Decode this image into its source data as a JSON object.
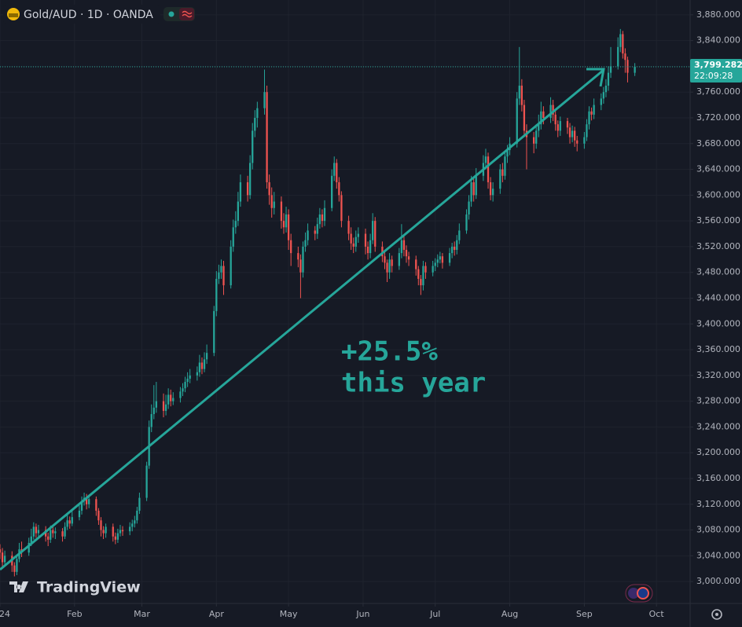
{
  "header": {
    "title": "Gold/AUD · 1D · OANDA"
  },
  "branding": "TradingView",
  "chart_data": {
    "type": "candlestick",
    "x": [
      0,
      1,
      2,
      5,
      6,
      7,
      8,
      9,
      12,
      13,
      14,
      15,
      16,
      19,
      20,
      21,
      22,
      23,
      26,
      27,
      28,
      29,
      30,
      33,
      34,
      35,
      36,
      37,
      40,
      41,
      42,
      43,
      44,
      47,
      48,
      49,
      50,
      51,
      54,
      55,
      56,
      57,
      58,
      61,
      62,
      63,
      64,
      65,
      68,
      69,
      70,
      71,
      72,
      75,
      76,
      77,
      78,
      79,
      82,
      83,
      84,
      85,
      86,
      89,
      90,
      91,
      92,
      93,
      96,
      97,
      98,
      99,
      100,
      103,
      104,
      105,
      106,
      107,
      110,
      111,
      112,
      113,
      114,
      117,
      118,
      119,
      120,
      121,
      124,
      125,
      126,
      127,
      128,
      131,
      132,
      133,
      134,
      135,
      138,
      139,
      140,
      141,
      142,
      145,
      146,
      147,
      148,
      149,
      152,
      153,
      154,
      155,
      156,
      159,
      160,
      161,
      162,
      163,
      166,
      167,
      168,
      169,
      170,
      173,
      174,
      175,
      176,
      177,
      180,
      181,
      182,
      183,
      184,
      187,
      188,
      189,
      190,
      191,
      194,
      195,
      196,
      197,
      198,
      201,
      202,
      203,
      204,
      205,
      208,
      209,
      210,
      211,
      212,
      215,
      216,
      217,
      218,
      219,
      222,
      223,
      224,
      225,
      226,
      229,
      230,
      231,
      232,
      233,
      236,
      237,
      238,
      239,
      240,
      243,
      244,
      245,
      246,
      247,
      250,
      251,
      252,
      253,
      254,
      257,
      258,
      259,
      260,
      261,
      264
    ],
    "open": [
      3050,
      3045,
      3030,
      3040,
      3025,
      3015,
      3035,
      3050,
      3045,
      3060,
      3070,
      3085,
      3075,
      3080,
      3070,
      3065,
      3080,
      3075,
      3078,
      3070,
      3085,
      3095,
      3090,
      3100,
      3110,
      3125,
      3130,
      3120,
      3128,
      3110,
      3095,
      3080,
      3075,
      3085,
      3070,
      3065,
      3075,
      3080,
      3078,
      3085,
      3090,
      3095,
      3110,
      3130,
      3180,
      3240,
      3260,
      3270,
      3280,
      3265,
      3275,
      3290,
      3280,
      3285,
      3295,
      3300,
      3310,
      3315,
      3320,
      3325,
      3340,
      3330,
      3345,
      3355,
      3420,
      3470,
      3480,
      3490,
      3460,
      3520,
      3550,
      3560,
      3590,
      3620,
      3600,
      3650,
      3700,
      3720,
      3735,
      3760,
      3620,
      3600,
      3580,
      3590,
      3560,
      3550,
      3570,
      3530,
      3510,
      3500,
      3480,
      3520,
      3530,
      3545,
      3540,
      3555,
      3570,
      3560,
      3580,
      3630,
      3650,
      3620,
      3600,
      3560,
      3540,
      3525,
      3520,
      3535,
      3540,
      3520,
      3510,
      3530,
      3560,
      3520,
      3505,
      3495,
      3480,
      3500,
      3490,
      3510,
      3530,
      3515,
      3505,
      3500,
      3485,
      3470,
      3460,
      3490,
      3480,
      3490,
      3495,
      3500,
      3505,
      3495,
      3510,
      3520,
      3515,
      3530,
      3545,
      3570,
      3590,
      3620,
      3600,
      3630,
      3650,
      3660,
      3620,
      3600,
      3610,
      3640,
      3630,
      3660,
      3670,
      3680,
      3750,
      3770,
      3740,
      3700,
      3690,
      3680,
      3700,
      3710,
      3730,
      3720,
      3740,
      3725,
      3710,
      3700,
      3715,
      3705,
      3690,
      3700,
      3685,
      3680,
      3690,
      3710,
      3730,
      3725,
      3740,
      3750,
      3760,
      3770,
      3790,
      3800,
      3830,
      3850,
      3820,
      3810,
      3790
    ],
    "high": [
      3058,
      3052,
      3048,
      3047,
      3030,
      3042,
      3060,
      3062,
      3068,
      3082,
      3092,
      3090,
      3088,
      3086,
      3076,
      3087,
      3085,
      3084,
      3083,
      3092,
      3104,
      3101,
      3110,
      3118,
      3132,
      3138,
      3136,
      3135,
      3132,
      3114,
      3100,
      3086,
      3090,
      3090,
      3076,
      3082,
      3088,
      3086,
      3092,
      3096,
      3102,
      3116,
      3138,
      3186,
      3250,
      3275,
      3305,
      3310,
      3292,
      3290,
      3300,
      3298,
      3294,
      3302,
      3308,
      3318,
      3325,
      3330,
      3334,
      3352,
      3348,
      3356,
      3368,
      3428,
      3482,
      3492,
      3500,
      3498,
      3530,
      3562,
      3575,
      3605,
      3632,
      3630,
      3662,
      3712,
      3732,
      3745,
      3795,
      3770,
      3632,
      3612,
      3605,
      3598,
      3572,
      3582,
      3578,
      3540,
      3520,
      3508,
      3528,
      3542,
      3556,
      3552,
      3565,
      3580,
      3578,
      3592,
      3640,
      3660,
      3656,
      3628,
      3606,
      3568,
      3550,
      3534,
      3545,
      3550,
      3548,
      3528,
      3540,
      3572,
      3566,
      3528,
      3512,
      3500,
      3510,
      3506,
      3518,
      3555,
      3538,
      3522,
      3512,
      3506,
      3490,
      3476,
      3498,
      3496,
      3498,
      3502,
      3508,
      3512,
      3510,
      3518,
      3526,
      3528,
      3538,
      3556,
      3578,
      3600,
      3630,
      3628,
      3642,
      3662,
      3672,
      3666,
      3628,
      3620,
      3648,
      3650,
      3668,
      3678,
      3690,
      3760,
      3830,
      3780,
      3748,
      3710,
      3698,
      3710,
      3725,
      3745,
      3738,
      3752,
      3748,
      3732,
      3716,
      3722,
      3720,
      3712,
      3708,
      3706,
      3692,
      3698,
      3718,
      3738,
      3736,
      3750,
      3758,
      3768,
      3780,
      3800,
      3830,
      3845,
      3858,
      3855,
      3828,
      3815,
      3805
    ],
    "low": [
      3035,
      3020,
      3025,
      3015,
      3008,
      3010,
      3030,
      3038,
      3040,
      3055,
      3065,
      3068,
      3070,
      3062,
      3055,
      3060,
      3068,
      3066,
      3062,
      3066,
      3080,
      3082,
      3086,
      3095,
      3104,
      3118,
      3112,
      3114,
      3102,
      3088,
      3070,
      3066,
      3068,
      3062,
      3058,
      3060,
      3070,
      3071,
      3072,
      3078,
      3084,
      3090,
      3105,
      3125,
      3175,
      3232,
      3252,
      3262,
      3255,
      3258,
      3268,
      3272,
      3274,
      3278,
      3288,
      3294,
      3302,
      3308,
      3312,
      3318,
      3322,
      3325,
      3338,
      3350,
      3412,
      3462,
      3470,
      3445,
      3455,
      3512,
      3540,
      3552,
      3582,
      3590,
      3594,
      3640,
      3690,
      3705,
      3725,
      3610,
      3585,
      3565,
      3570,
      3548,
      3540,
      3542,
      3515,
      3490,
      3488,
      3440,
      3472,
      3512,
      3522,
      3530,
      3532,
      3548,
      3550,
      3552,
      3575,
      3622,
      3610,
      3590,
      3550,
      3530,
      3515,
      3510,
      3512,
      3526,
      3508,
      3500,
      3502,
      3524,
      3512,
      3496,
      3485,
      3465,
      3470,
      3480,
      3484,
      3502,
      3505,
      3495,
      3490,
      3475,
      3460,
      3445,
      3452,
      3470,
      3474,
      3482,
      3488,
      3494,
      3486,
      3490,
      3502,
      3506,
      3508,
      3524,
      3540,
      3562,
      3582,
      3590,
      3594,
      3622,
      3640,
      3610,
      3592,
      3590,
      3602,
      3620,
      3624,
      3650,
      3662,
      3674,
      3740,
      3730,
      3690,
      3640,
      3665,
      3672,
      3690,
      3702,
      3710,
      3712,
      3715,
      3700,
      3690,
      3692,
      3695,
      3680,
      3682,
      3675,
      3668,
      3672,
      3684,
      3702,
      3716,
      3718,
      3732,
      3742,
      3752,
      3762,
      3782,
      3795,
      3822,
      3812,
      3790,
      3775,
      3785
    ],
    "close": [
      3045,
      3030,
      3040,
      3025,
      3015,
      3035,
      3050,
      3045,
      3060,
      3070,
      3085,
      3075,
      3080,
      3070,
      3065,
      3080,
      3075,
      3078,
      3070,
      3085,
      3095,
      3090,
      3100,
      3110,
      3125,
      3130,
      3120,
      3128,
      3110,
      3095,
      3080,
      3075,
      3085,
      3070,
      3065,
      3075,
      3080,
      3078,
      3085,
      3090,
      3095,
      3110,
      3130,
      3180,
      3240,
      3260,
      3270,
      3280,
      3265,
      3275,
      3290,
      3280,
      3285,
      3295,
      3300,
      3310,
      3315,
      3320,
      3325,
      3340,
      3330,
      3345,
      3355,
      3420,
      3470,
      3480,
      3490,
      3460,
      3520,
      3550,
      3560,
      3590,
      3620,
      3600,
      3650,
      3700,
      3720,
      3735,
      3760,
      3620,
      3600,
      3580,
      3590,
      3560,
      3550,
      3570,
      3530,
      3510,
      3500,
      3480,
      3520,
      3530,
      3545,
      3540,
      3555,
      3570,
      3560,
      3580,
      3630,
      3650,
      3620,
      3600,
      3560,
      3540,
      3525,
      3520,
      3535,
      3540,
      3520,
      3510,
      3530,
      3560,
      3520,
      3505,
      3495,
      3480,
      3500,
      3490,
      3510,
      3530,
      3515,
      3505,
      3500,
      3485,
      3470,
      3460,
      3490,
      3480,
      3490,
      3495,
      3500,
      3505,
      3495,
      3510,
      3520,
      3515,
      3530,
      3545,
      3570,
      3590,
      3620,
      3600,
      3630,
      3650,
      3660,
      3620,
      3600,
      3610,
      3640,
      3630,
      3660,
      3670,
      3680,
      3750,
      3770,
      3740,
      3700,
      3690,
      3680,
      3700,
      3710,
      3730,
      3720,
      3740,
      3725,
      3710,
      3700,
      3715,
      3705,
      3690,
      3700,
      3685,
      3680,
      3690,
      3710,
      3730,
      3725,
      3740,
      3750,
      3760,
      3770,
      3790,
      3800,
      3830,
      3850,
      3820,
      3810,
      3790,
      3799.282
    ],
    "up_color": "#26a69a",
    "down_color": "#ef5350",
    "xlim": [
      0,
      287
    ],
    "xticks": [
      {
        "value": 0,
        "label": "24"
      },
      {
        "value": 31,
        "label": "Feb"
      },
      {
        "value": 59,
        "label": "Mar"
      },
      {
        "value": 90,
        "label": "Apr"
      },
      {
        "value": 120,
        "label": "May"
      },
      {
        "value": 151,
        "label": "Jun"
      },
      {
        "value": 181,
        "label": "Jul"
      },
      {
        "value": 212,
        "label": "Aug"
      },
      {
        "value": 243,
        "label": "Sep"
      },
      {
        "value": 273,
        "label": "Oct"
      }
    ],
    "ylim": [
      2966,
      3903
    ],
    "yticks": [
      {
        "value": 3000,
        "label": "3,000.000"
      },
      {
        "value": 3040,
        "label": "3,040.000"
      },
      {
        "value": 3080,
        "label": "3,080.000"
      },
      {
        "value": 3120,
        "label": "3,120.000"
      },
      {
        "value": 3160,
        "label": "3,160.000"
      },
      {
        "value": 3200,
        "label": "3,200.000"
      },
      {
        "value": 3240,
        "label": "3,240.000"
      },
      {
        "value": 3280,
        "label": "3,280.000"
      },
      {
        "value": 3320,
        "label": "3,320.000"
      },
      {
        "value": 3360,
        "label": "3,360.000"
      },
      {
        "value": 3400,
        "label": "3,400.000"
      },
      {
        "value": 3440,
        "label": "3,440.000"
      },
      {
        "value": 3480,
        "label": "3,480.000"
      },
      {
        "value": 3520,
        "label": "3,520.000"
      },
      {
        "value": 3560,
        "label": "3,560.000"
      },
      {
        "value": 3600,
        "label": "3,600.000"
      },
      {
        "value": 3640,
        "label": "3,640.000"
      },
      {
        "value": 3680,
        "label": "3,680.000"
      },
      {
        "value": 3720,
        "label": "3,720.000"
      },
      {
        "value": 3760,
        "label": "3,760.000"
      },
      {
        "value": 3800,
        "label": "3,800.000"
      },
      {
        "value": 3840,
        "label": "3,840.000"
      },
      {
        "value": 3880,
        "label": "3,880.000"
      }
    ],
    "grid": true,
    "last_price": {
      "value": 3799.282,
      "label": "3,799.282"
    },
    "countdown": "22:09:28",
    "annotation": [
      "+25.5%",
      "this year"
    ],
    "annotation_color": "#26a69a"
  }
}
